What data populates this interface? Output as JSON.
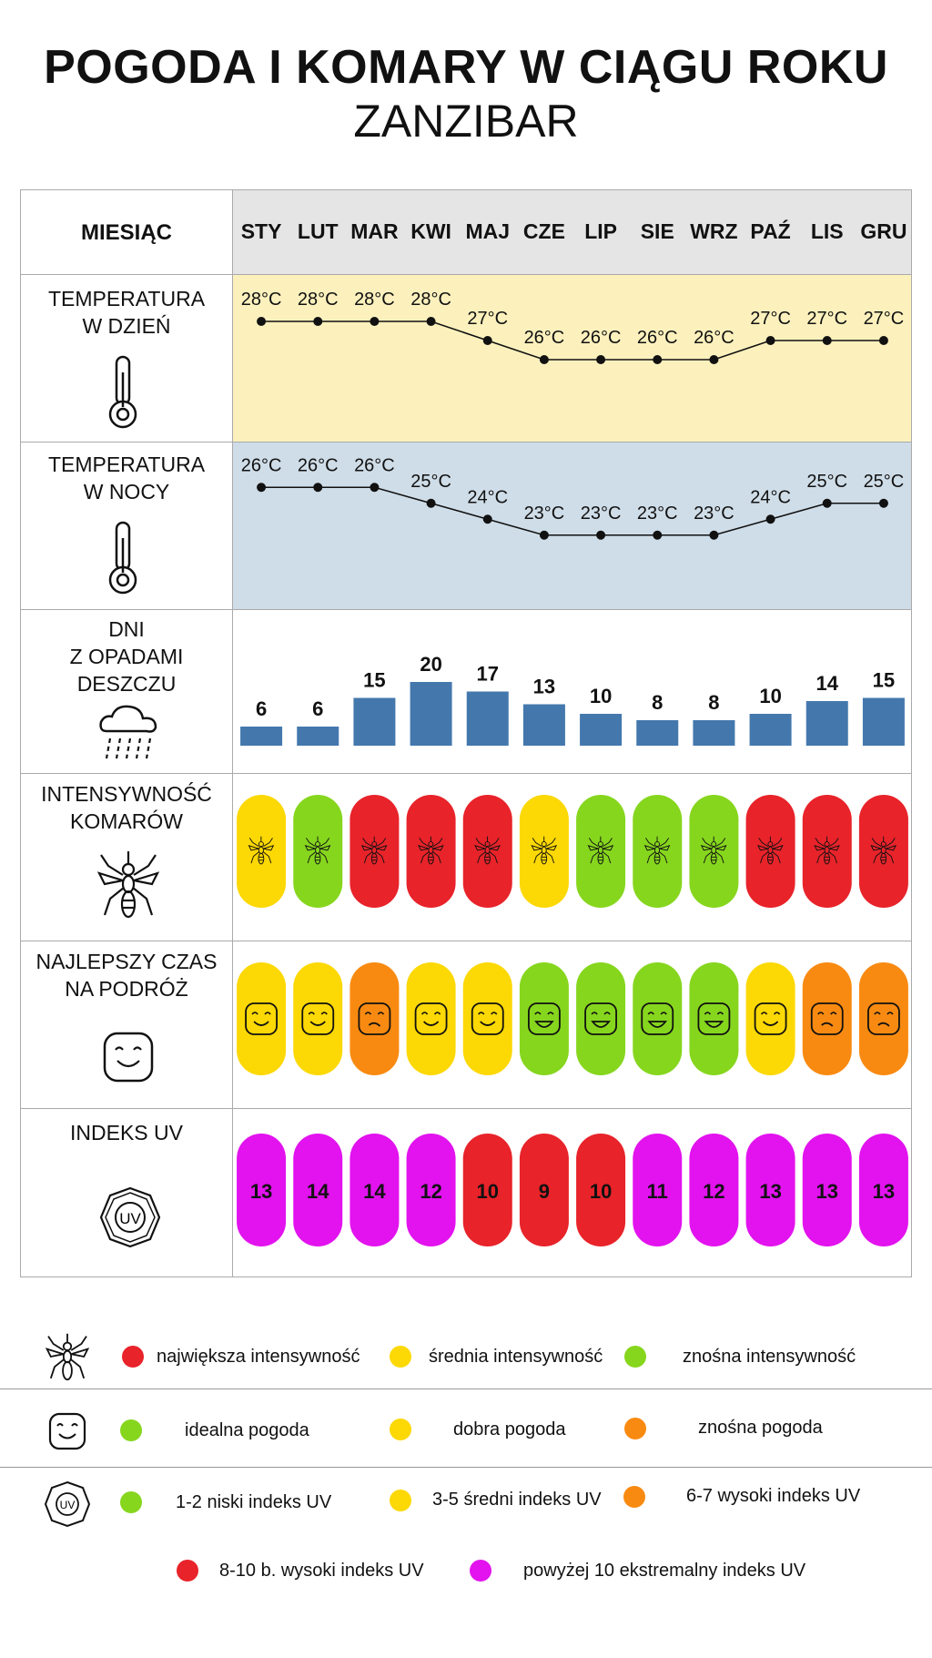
{
  "title": "POGODA I KOMARY W CIĄGU ROKU",
  "subtitle": "ZANZIBAR",
  "header_label": "MIESIĄC",
  "months": [
    "STY",
    "LUT",
    "MAR",
    "KWI",
    "MAJ",
    "CZE",
    "LIP",
    "SIE",
    "WRZ",
    "PAŹ",
    "LIS",
    "GRU"
  ],
  "rows": {
    "day_temp": "TEMPERATURA\nW DZIEŃ",
    "night_temp": "TEMPERATURA\nW NOCY",
    "rain": "DNI\nZ OPADAMI\nDESZCZU",
    "mosquito": "INTENSYWNOŚĆ\nKOMARÓW",
    "best_time": "NAJLEPSZY CZAS\nNA PODRÓŻ",
    "uv": "INDEKS UV"
  },
  "colors": {
    "day_bg": "#fcf1bd",
    "night_bg": "#cfdde8",
    "header_bg": "#e5e5e5",
    "bar": "#4478ad",
    "red": "#e8232a",
    "yellow": "#fcd804",
    "green": "#86d61e",
    "orange": "#f98a11",
    "magenta": "#e213ee"
  },
  "chart_data": {
    "type": "table",
    "categories": [
      "STY",
      "LUT",
      "MAR",
      "KWI",
      "MAJ",
      "CZE",
      "LIP",
      "SIE",
      "WRZ",
      "PAŹ",
      "LIS",
      "GRU"
    ],
    "day_temperature": {
      "values": [
        28,
        28,
        28,
        28,
        27,
        26,
        26,
        26,
        26,
        27,
        27,
        27
      ],
      "unit": "°C"
    },
    "night_temperature": {
      "values": [
        26,
        26,
        26,
        25,
        24,
        23,
        23,
        23,
        23,
        24,
        25,
        25
      ],
      "unit": "°C"
    },
    "rain_days": {
      "values": [
        6,
        6,
        15,
        20,
        17,
        13,
        10,
        8,
        8,
        10,
        14,
        15
      ]
    },
    "mosquito_intensity": [
      "yellow",
      "green",
      "red",
      "red",
      "red",
      "yellow",
      "green",
      "green",
      "green",
      "red",
      "red",
      "red"
    ],
    "best_time": [
      "yellow",
      "yellow",
      "orange",
      "yellow",
      "yellow",
      "green",
      "green",
      "green",
      "green",
      "yellow",
      "orange",
      "orange"
    ],
    "uv_index": {
      "values": [
        13,
        14,
        14,
        12,
        10,
        9,
        10,
        11,
        12,
        13,
        13,
        13
      ],
      "colors": [
        "magenta",
        "magenta",
        "magenta",
        "magenta",
        "red",
        "red",
        "red",
        "magenta",
        "magenta",
        "magenta",
        "magenta",
        "magenta"
      ]
    }
  },
  "legend": {
    "mosquito": [
      {
        "color": "red",
        "label": "największa intensywność"
      },
      {
        "color": "yellow",
        "label": "średnia intensywność"
      },
      {
        "color": "green",
        "label": "znośna intensywność"
      }
    ],
    "weather": [
      {
        "color": "green",
        "label": "idealna pogoda"
      },
      {
        "color": "yellow",
        "label": "dobra pogoda"
      },
      {
        "color": "orange",
        "label": "znośna pogoda"
      }
    ],
    "uv": [
      {
        "color": "green",
        "label": "1-2 niski indeks UV"
      },
      {
        "color": "yellow",
        "label": "3-5 średni indeks UV"
      },
      {
        "color": "orange",
        "label": "6-7 wysoki indeks UV"
      },
      {
        "color": "red",
        "label": "8-10 b. wysoki indeks UV"
      },
      {
        "color": "magenta",
        "label": "powyżej 10 ekstremalny indeks UV"
      }
    ]
  },
  "icons": {
    "thermometer": "thermometer-icon",
    "rain": "rain-cloud-icon",
    "mosquito": "mosquito-icon",
    "smiley": "smiley-icon",
    "uv": "uv-badge-icon"
  }
}
